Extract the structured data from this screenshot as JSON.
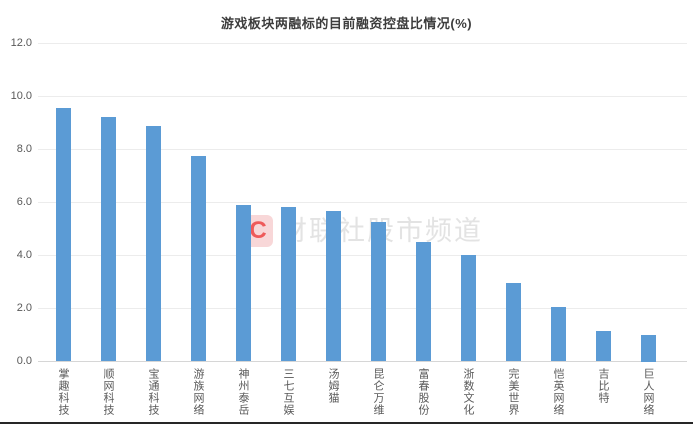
{
  "watermark": {
    "logo_letter": "C",
    "text": "财联社股市频道"
  },
  "colors": {
    "bar": "#5b9bd5",
    "gridline": "#ececec",
    "axis_line": "#d6d6d6",
    "tick_text": "#595959",
    "title_text": "#3d3d3d",
    "watermark_text": "#e3e3e3",
    "watermark_logo_bg": "#f8d7d8",
    "watermark_logo_letter": "#ee5a5a",
    "bottom_border": "#262626"
  },
  "chart_data": {
    "type": "bar",
    "title": "游戏板块两融标的目前融资控盘比情况(%)",
    "categories": [
      "掌趣科技",
      "顺网科技",
      "宝通科技",
      "游族网络",
      "神州泰岳",
      "三七互娱",
      "汤姆猫",
      "昆仑万维",
      "富春股份",
      "浙数文化",
      "完美世界",
      "恺英网络",
      "吉比特",
      "巨人网络"
    ],
    "values": [
      9.55,
      9.2,
      8.85,
      7.75,
      5.9,
      5.8,
      5.65,
      5.25,
      4.5,
      4.0,
      2.95,
      2.05,
      1.15,
      1.0
    ],
    "xlabel": "",
    "ylabel": "",
    "ylim": [
      0,
      12
    ],
    "ytick_step": 2,
    "ytick_labels": [
      "0.0",
      "2.0",
      "4.0",
      "6.0",
      "8.0",
      "10.0",
      "12.0"
    ],
    "grid": true,
    "legend": "none",
    "bar_color": "#5b9bd5"
  }
}
